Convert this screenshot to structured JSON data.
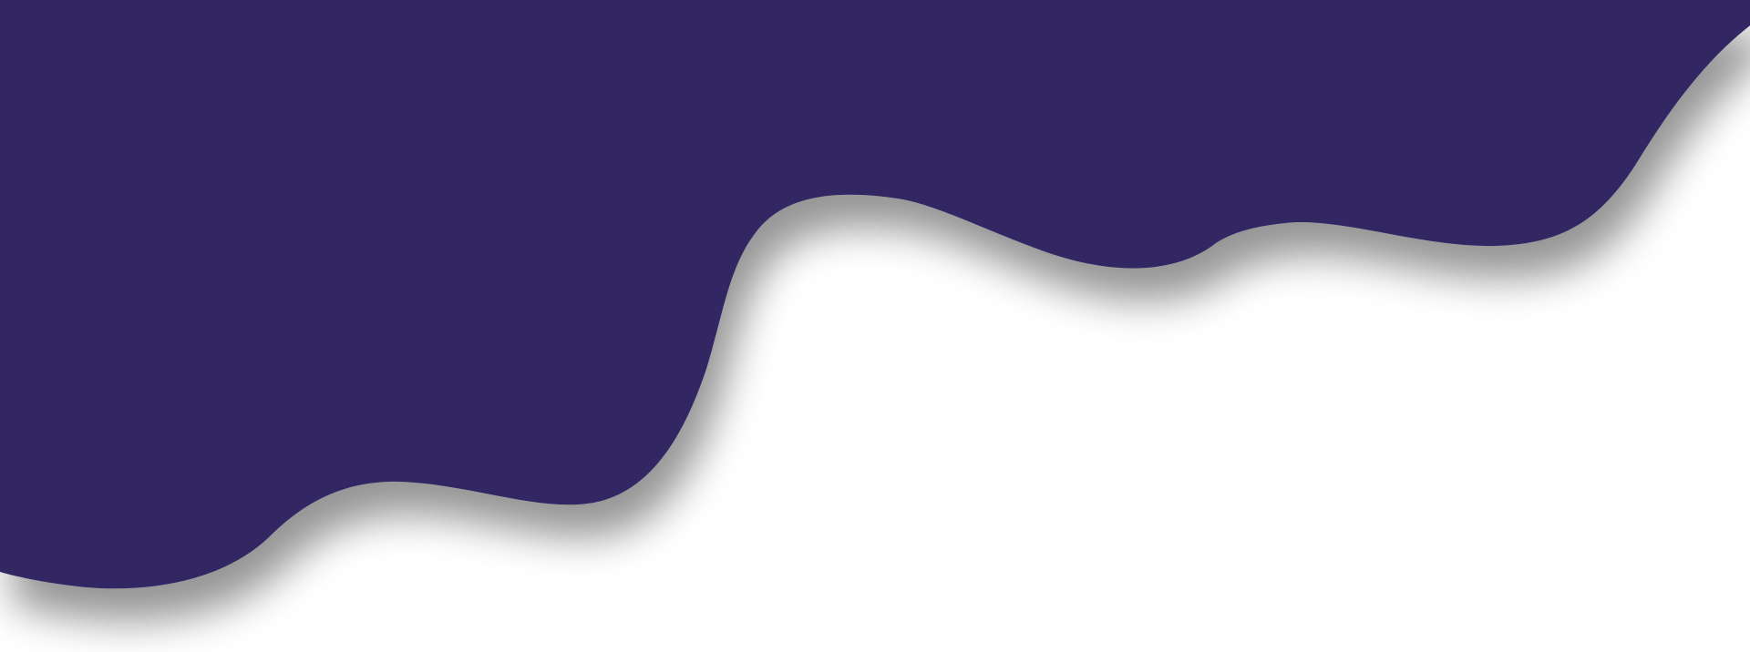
{
  "colors": {
    "wave_fill": "#312863",
    "background": "#ffffff",
    "shadow": "#7a7a7a"
  },
  "elements": {
    "wave": "decorative-wave-shape",
    "shadow": "wave-drop-shadow"
  }
}
